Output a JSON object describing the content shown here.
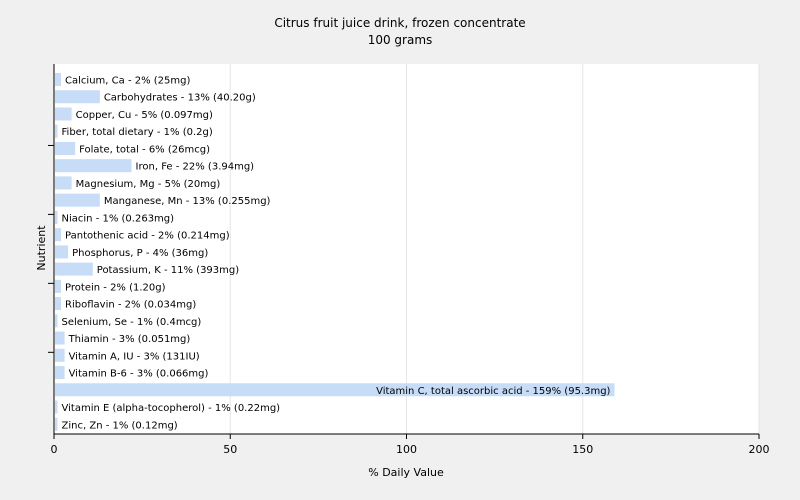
{
  "chart_data": {
    "type": "bar",
    "orientation": "horizontal",
    "title": "Citrus fruit juice drink, frozen concentrate",
    "subtitle": "100 grams",
    "xlabel": "% Daily Value",
    "ylabel": "Nutrient",
    "xlim": [
      0,
      200
    ],
    "xticks": [
      0,
      50,
      100,
      150,
      200
    ],
    "grid": true,
    "bar_color": "#c6dcf7",
    "categories": [
      "Calcium, Ca",
      "Carbohydrates",
      "Copper, Cu",
      "Fiber, total dietary",
      "Folate, total",
      "Iron, Fe",
      "Magnesium, Mg",
      "Manganese, Mn",
      "Niacin",
      "Pantothenic acid",
      "Phosphorus, P",
      "Potassium, K",
      "Protein",
      "Riboflavin",
      "Selenium, Se",
      "Thiamin",
      "Vitamin A, IU",
      "Vitamin B-6",
      "Vitamin C, total ascorbic acid",
      "Vitamin E (alpha-tocopherol)",
      "Zinc, Zn"
    ],
    "values": [
      2,
      13,
      5,
      1,
      6,
      22,
      5,
      13,
      1,
      2,
      4,
      11,
      2,
      2,
      1,
      3,
      3,
      3,
      159,
      1,
      1
    ],
    "labels": [
      "Calcium, Ca - 2% (25mg)",
      "Carbohydrates - 13% (40.20g)",
      "Copper, Cu - 5% (0.097mg)",
      "Fiber, total dietary - 1% (0.2g)",
      "Folate, total - 6% (26mcg)",
      "Iron, Fe - 22% (3.94mg)",
      "Magnesium, Mg - 5% (20mg)",
      "Manganese, Mn - 13% (0.255mg)",
      "Niacin - 1% (0.263mg)",
      "Pantothenic acid - 2% (0.214mg)",
      "Phosphorus, P - 4% (36mg)",
      "Potassium, K - 11% (393mg)",
      "Protein - 2% (1.20g)",
      "Riboflavin - 2% (0.034mg)",
      "Selenium, Se - 1% (0.4mcg)",
      "Thiamin - 3% (0.051mg)",
      "Vitamin A, IU - 3% (131IU)",
      "Vitamin B-6 - 3% (0.066mg)",
      "Vitamin C, total ascorbic acid - 159% (95.3mg)",
      "Vitamin E (alpha-tocopherol) - 1% (0.22mg)",
      "Zinc, Zn - 1% (0.12mg)"
    ]
  }
}
